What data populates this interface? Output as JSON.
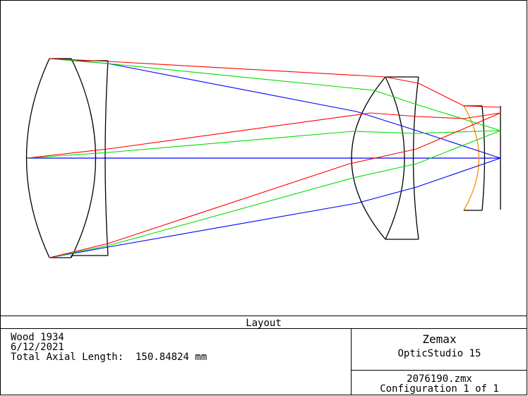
{
  "layout_title": "Layout",
  "info": {
    "line1": "Wood 1934",
    "line2": "6/12/2021",
    "line3": "Total Axial Length:  150.84824 mm"
  },
  "brand": {
    "name": "Zemax",
    "product": "OpticStudio 15"
  },
  "file": {
    "name": "2076190.zmx",
    "config": "Configuration 1 of 1"
  },
  "colors": {
    "field1": "#0000ff",
    "field2": "#00dd00",
    "field3": "#ff0000",
    "image_surface": "#ff8c00",
    "lens": "#000000"
  }
}
